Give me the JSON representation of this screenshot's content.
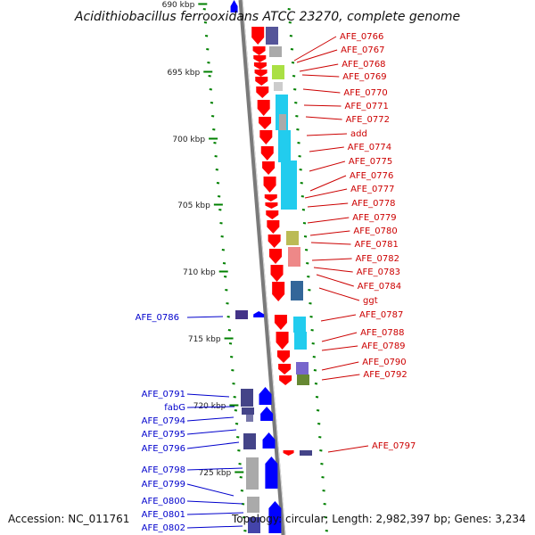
{
  "title": "Acidithiobacillus ferrooxidans ATCC 23270, complete genome",
  "accession": "Accession: NC_011761",
  "topology": "Topology: circular; Length: 2,982,397 bp; Genes: 3,234",
  "scale_labels": [
    "690 kbp",
    "695 kbp",
    "700 kbp",
    "705 kbp",
    "710 kbp",
    "715 kbp",
    "720 kbp",
    "725 kbp"
  ],
  "right_genes": [
    "AFE_0766",
    "AFE_0767",
    "AFE_0768",
    "AFE_0769",
    "AFE_0770",
    "AFE_0771",
    "AFE_0772",
    "add",
    "AFE_0774",
    "AFE_0775",
    "AFE_0776",
    "AFE_0777",
    "AFE_0778",
    "AFE_0779",
    "AFE_0780",
    "AFE_0781",
    "AFE_0782",
    "AFE_0783",
    "AFE_0784",
    "ggt",
    "AFE_0787",
    "AFE_0788",
    "AFE_0789",
    "AFE_0790",
    "AFE_0792",
    "AFE_0797"
  ],
  "left_genes": [
    "AFE_0786",
    "AFE_0791",
    "fabG",
    "AFE_0794",
    "AFE_0795",
    "AFE_0796",
    "AFE_0798",
    "AFE_0799",
    "AFE_0800",
    "AFE_0801",
    "AFE_0802"
  ],
  "colors": {
    "forward_strand": "#ff0000",
    "reverse_strand": "#0000ff",
    "right_label": "#cc0000",
    "left_label": "#0000cc",
    "tick": "#008000",
    "backbone": "#888888"
  }
}
